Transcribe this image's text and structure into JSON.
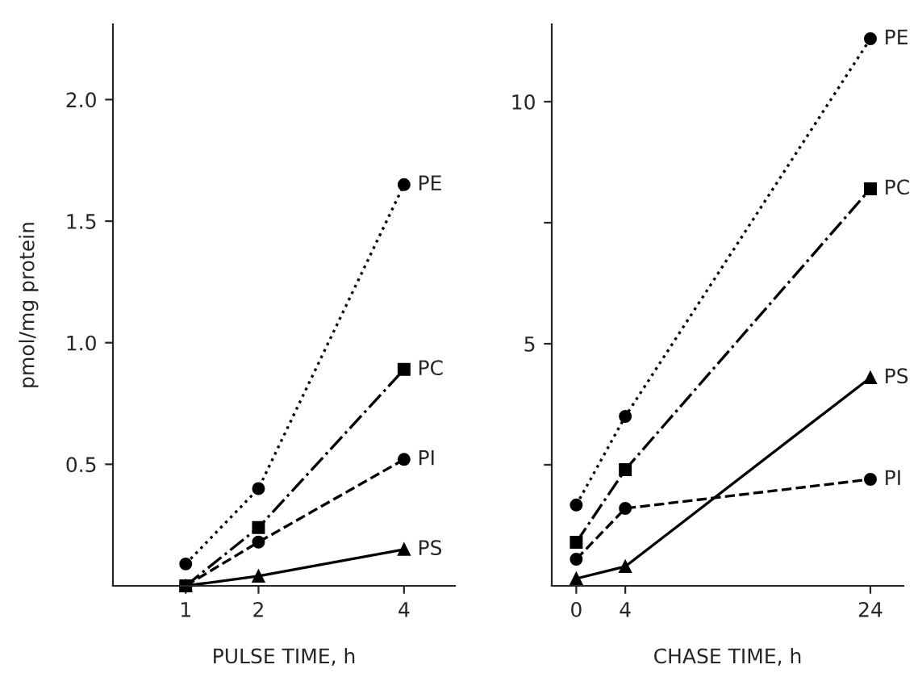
{
  "chart_data": [
    {
      "type": "line",
      "xlabel": "PULSE TIME, h",
      "ylabel": "pmol/mg protein",
      "x": [
        1,
        2,
        4
      ],
      "xlim": [
        0,
        4.7
      ],
      "xticks": [
        1,
        2,
        4
      ],
      "ylim": [
        0,
        2.31
      ],
      "yticks": [
        0.5,
        {
          "value": 1,
          "label": "1.0"
        },
        1.5,
        {
          "value": 2,
          "label": "2.0"
        }
      ],
      "grid": false,
      "legend": false,
      "series": [
        {
          "name": "PE",
          "color": "#000000",
          "marker": "circle",
          "line_style": "dotted",
          "values": [
            0.09,
            0.4,
            1.65
          ]
        },
        {
          "name": "PC",
          "color": "#000000",
          "marker": "square",
          "line_style": "dashdot",
          "values": [
            0.0,
            0.24,
            0.89
          ]
        },
        {
          "name": "PI",
          "color": "#000000",
          "marker": "circle",
          "line_style": "dashed",
          "values": [
            0.0,
            0.18,
            0.52
          ]
        },
        {
          "name": "PS",
          "color": "#000000",
          "marker": "triangle",
          "line_style": "solid",
          "values": [
            0.0,
            0.04,
            0.15
          ]
        }
      ]
    },
    {
      "type": "line",
      "xlabel": "CHASE TIME, h",
      "x": [
        0,
        4,
        24
      ],
      "xlim": [
        -2,
        26.7
      ],
      "xticks": [
        0,
        4,
        24
      ],
      "ylim": [
        0,
        11.6
      ],
      "yticks": [
        {
          "value": 2.5,
          "label": null
        },
        5,
        {
          "value": 7.5,
          "label": null
        },
        10
      ],
      "grid": false,
      "legend": false,
      "series": [
        {
          "name": "PE",
          "color": "#000000",
          "marker": "circle",
          "line_style": "dotted",
          "values": [
            1.67,
            3.5,
            11.3
          ]
        },
        {
          "name": "PC",
          "color": "#000000",
          "marker": "square",
          "line_style": "dashdot",
          "values": [
            0.9,
            2.4,
            8.2
          ]
        },
        {
          "name": "PI",
          "color": "#000000",
          "marker": "circle",
          "line_style": "dashed",
          "values": [
            0.55,
            1.6,
            2.2
          ]
        },
        {
          "name": "PS",
          "color": "#000000",
          "marker": "triangle",
          "line_style": "solid",
          "values": [
            0.15,
            0.4,
            4.3
          ]
        }
      ]
    }
  ]
}
